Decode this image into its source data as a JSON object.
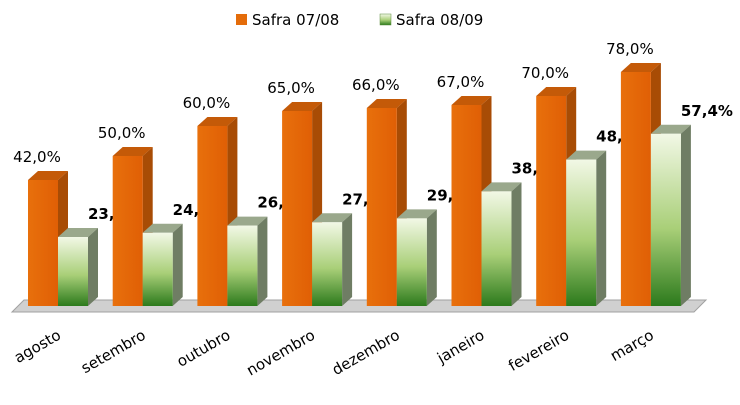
{
  "chart_data": {
    "type": "bar3d",
    "categories": [
      "agosto",
      "setembro",
      "outubro",
      "novembro",
      "dezembro",
      "janeiro",
      "fevereiro",
      "março"
    ],
    "series": [
      {
        "name": "Safra 07/08",
        "color": "#e46c0a",
        "values": [
          42.0,
          50.0,
          60.0,
          65.0,
          66.0,
          67.0,
          70.0,
          78.0
        ],
        "value_labels": [
          "42,0%",
          "50,0%",
          "60,0%",
          "65,0%",
          "66,0%",
          "67,0%",
          "70,0%",
          "78,0%"
        ]
      },
      {
        "name": "Safra 08/09",
        "color": "#3a8a22",
        "values": [
          23.0,
          24.4,
          26.8,
          27.9,
          29.2,
          38.2,
          48.8,
          57.4
        ],
        "value_labels": [
          "23,0%",
          "24,4%",
          "26,8%",
          "27,9%",
          "29,2%",
          "38,2%",
          "48,8%",
          "57,4%"
        ]
      }
    ],
    "legend": "top"
  }
}
